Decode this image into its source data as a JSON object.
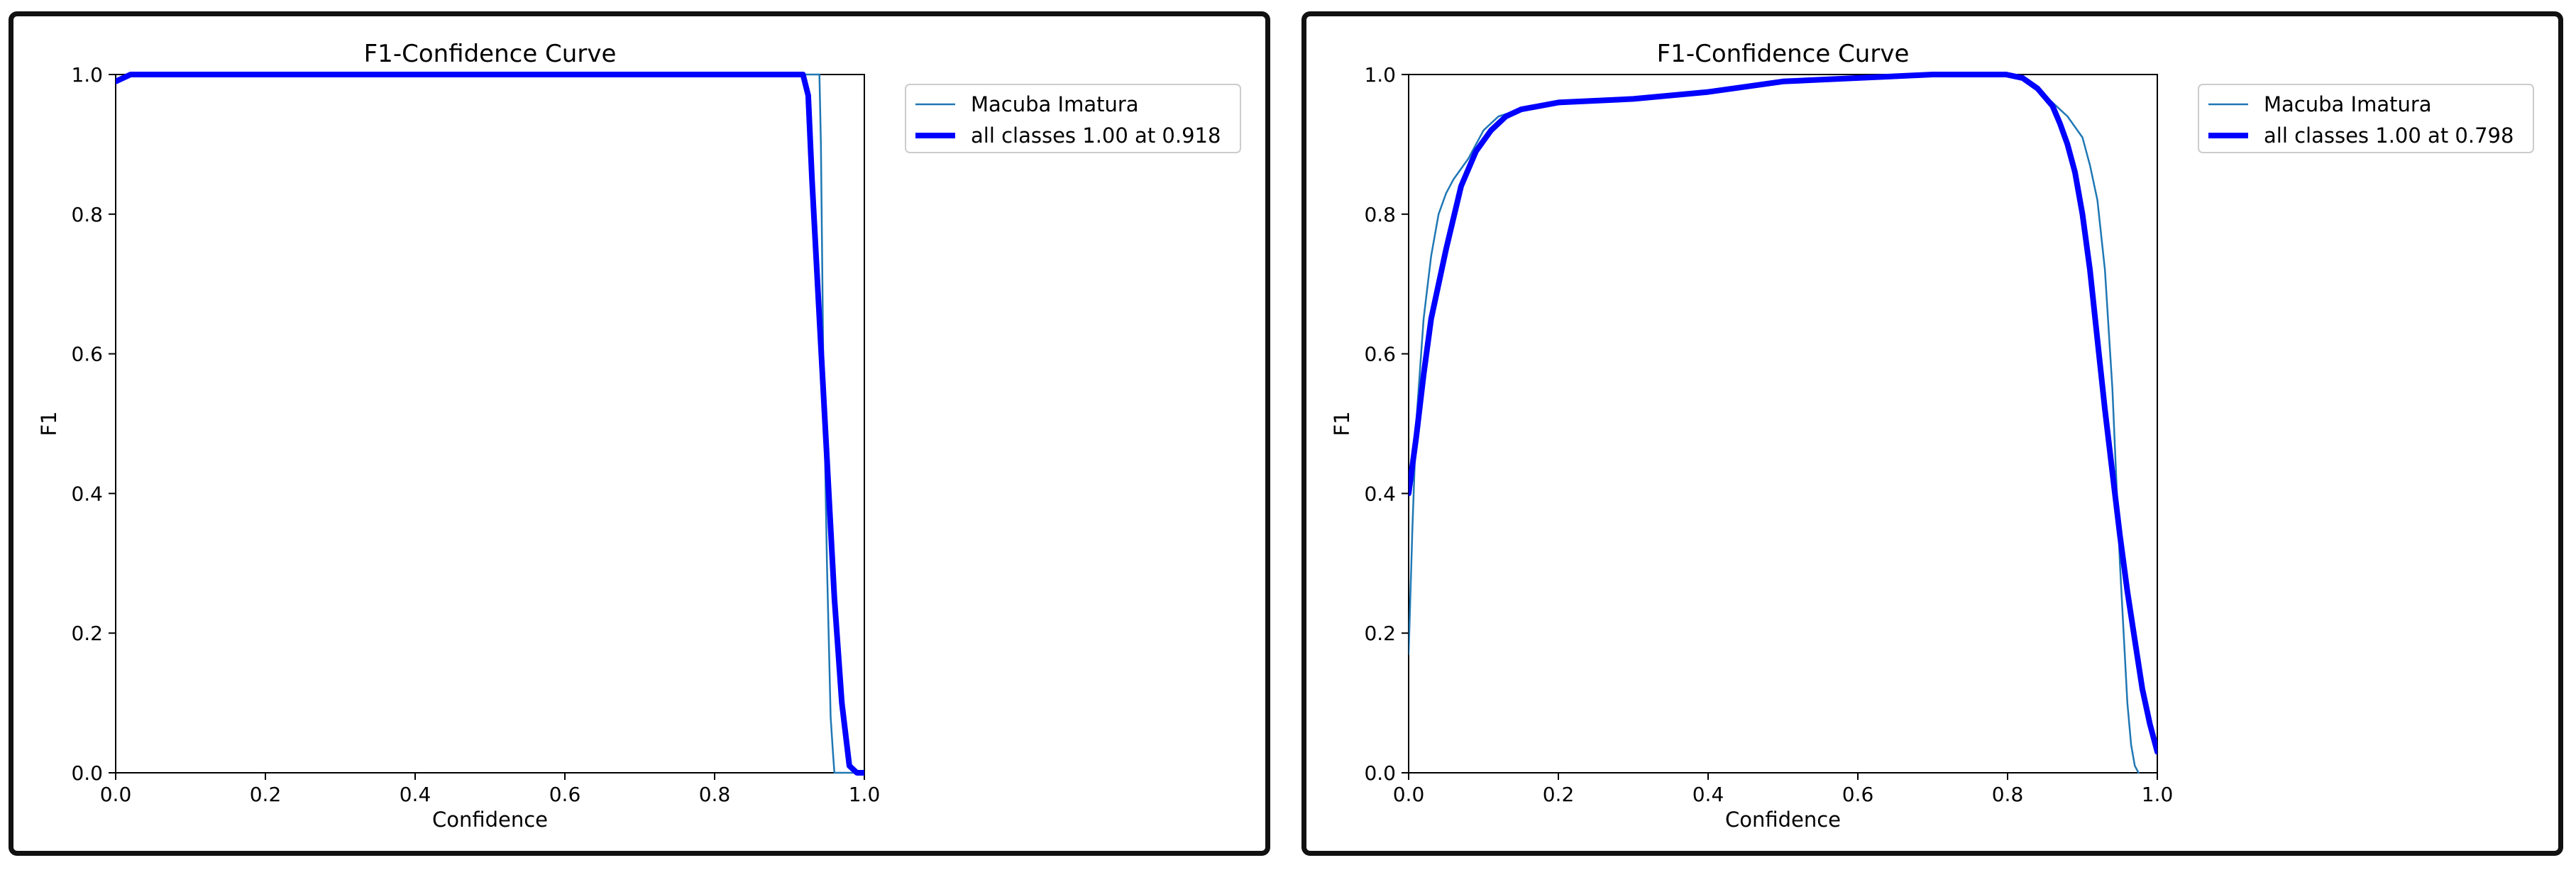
{
  "chart_data": [
    {
      "type": "line",
      "title": "F1-Confidence Curve",
      "xlabel": "Confidence",
      "ylabel": "F1",
      "xlim": [
        0,
        1
      ],
      "ylim": [
        0,
        1
      ],
      "xticks": [
        "0.0",
        "0.2",
        "0.4",
        "0.6",
        "0.8",
        "1.0"
      ],
      "yticks": [
        "0.0",
        "0.2",
        "0.4",
        "0.6",
        "0.8",
        "1.0"
      ],
      "grid": false,
      "legend_position": "outside-top-right",
      "series": [
        {
          "name": "Macuba Imatura",
          "color": "#1f77b4",
          "width": "thin",
          "x": [
            0.0,
            0.01,
            0.02,
            0.5,
            0.9,
            0.94,
            0.942,
            0.945,
            0.95,
            0.955,
            0.958,
            0.96,
            0.97,
            1.0
          ],
          "y": [
            0.99,
            0.995,
            1.0,
            1.0,
            1.0,
            1.0,
            0.9,
            0.6,
            0.3,
            0.08,
            0.03,
            0.0,
            0.0,
            0.0
          ]
        },
        {
          "name": "all classes 1.00 at 0.918",
          "color": "#0000ff",
          "width": "thick",
          "x": [
            0.0,
            0.01,
            0.02,
            0.5,
            0.9,
            0.918,
            0.925,
            0.93,
            0.94,
            0.95,
            0.96,
            0.97,
            0.98,
            0.99,
            1.0
          ],
          "y": [
            0.99,
            0.995,
            1.0,
            1.0,
            1.0,
            1.0,
            0.97,
            0.85,
            0.65,
            0.45,
            0.25,
            0.1,
            0.01,
            0.0,
            0.0
          ]
        }
      ]
    },
    {
      "type": "line",
      "title": "F1-Confidence Curve",
      "xlabel": "Confidence",
      "ylabel": "F1",
      "xlim": [
        0,
        1
      ],
      "ylim": [
        0,
        1
      ],
      "xticks": [
        "0.0",
        "0.2",
        "0.4",
        "0.6",
        "0.8",
        "1.0"
      ],
      "yticks": [
        "0.0",
        "0.2",
        "0.4",
        "0.6",
        "0.8",
        "1.0"
      ],
      "grid": false,
      "legend_position": "outside-top-right",
      "series": [
        {
          "name": "Macuba Imatura",
          "color": "#1f77b4",
          "width": "thin",
          "x": [
            0.0,
            0.005,
            0.01,
            0.02,
            0.03,
            0.04,
            0.05,
            0.06,
            0.08,
            0.1,
            0.12,
            0.15,
            0.2,
            0.3,
            0.4,
            0.5,
            0.6,
            0.7,
            0.8,
            0.83,
            0.86,
            0.88,
            0.9,
            0.91,
            0.92,
            0.93,
            0.94,
            0.95,
            0.96,
            0.965,
            0.97,
            0.975
          ],
          "y": [
            0.17,
            0.35,
            0.5,
            0.65,
            0.74,
            0.8,
            0.83,
            0.85,
            0.88,
            0.92,
            0.94,
            0.95,
            0.96,
            0.965,
            0.975,
            0.99,
            0.995,
            1.0,
            1.0,
            0.99,
            0.96,
            0.94,
            0.91,
            0.87,
            0.82,
            0.72,
            0.55,
            0.3,
            0.1,
            0.04,
            0.01,
            0.0
          ]
        },
        {
          "name": "all classes 1.00 at 0.798",
          "color": "#0000ff",
          "width": "thick",
          "x": [
            0.0,
            0.01,
            0.02,
            0.03,
            0.05,
            0.07,
            0.09,
            0.11,
            0.13,
            0.15,
            0.2,
            0.3,
            0.4,
            0.5,
            0.6,
            0.7,
            0.798,
            0.82,
            0.84,
            0.86,
            0.87,
            0.88,
            0.89,
            0.9,
            0.91,
            0.92,
            0.93,
            0.94,
            0.95,
            0.96,
            0.97,
            0.98,
            0.99,
            1.0
          ],
          "y": [
            0.4,
            0.48,
            0.57,
            0.65,
            0.75,
            0.84,
            0.89,
            0.92,
            0.94,
            0.95,
            0.96,
            0.965,
            0.975,
            0.99,
            0.995,
            1.0,
            1.0,
            0.995,
            0.98,
            0.955,
            0.93,
            0.9,
            0.86,
            0.8,
            0.72,
            0.62,
            0.52,
            0.43,
            0.34,
            0.26,
            0.19,
            0.12,
            0.07,
            0.03
          ]
        }
      ]
    }
  ]
}
